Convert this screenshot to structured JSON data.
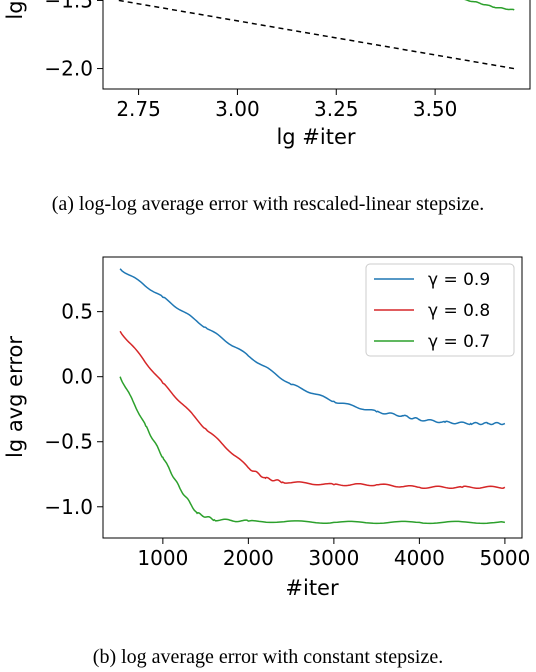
{
  "captions": {
    "a": "(a) log-log average error with rescaled-linear stepsize.",
    "b": "(b) log average error with constant stepsize."
  },
  "chart_data": [
    {
      "type": "line",
      "title": "",
      "xlabel": "lg #iter",
      "ylabel": "lg",
      "xlim": [
        2.66,
        3.74
      ],
      "ylim": [
        -2.15,
        -1.35
      ],
      "xticks": [
        "2.75",
        "3.00",
        "3.25",
        "3.50"
      ],
      "xtick_values": [
        2.75,
        3.0,
        3.25,
        3.5
      ],
      "yticks": [
        "−2.0",
        "−1.5"
      ],
      "ytick_values": [
        -2.0,
        -1.5
      ],
      "series": [
        {
          "style": "dashed",
          "color": "#000000",
          "x": [
            2.7,
            3.7
          ],
          "y": [
            -1.5,
            -2.0
          ]
        },
        {
          "color": "#2ca02c",
          "x": [
            3.4,
            3.45,
            3.5,
            3.55,
            3.6,
            3.65,
            3.7
          ],
          "y": [
            -1.39,
            -1.42,
            -1.45,
            -1.48,
            -1.51,
            -1.55,
            -1.57
          ]
        }
      ]
    },
    {
      "type": "line",
      "title": "",
      "xlabel": "#iter",
      "ylabel": "lg avg error",
      "xlim": [
        300,
        5200
      ],
      "ylim": [
        -1.24,
        0.92
      ],
      "xticks": [
        "1000",
        "2000",
        "3000",
        "4000",
        "5000"
      ],
      "xtick_values": [
        1000,
        2000,
        3000,
        4000,
        5000
      ],
      "yticks": [
        "−1.0",
        "−0.5",
        "0.0",
        "0.5"
      ],
      "ytick_values": [
        -1.0,
        -0.5,
        0.0,
        0.5
      ],
      "legend_position": "top-right",
      "series": [
        {
          "name": "γ = 0.9",
          "color": "#1f77b4",
          "x": [
            500,
            1000,
            1500,
            2000,
            2500,
            3000,
            3500,
            3800,
            4000,
            4300,
            4600,
            4800,
            5000
          ],
          "y": [
            0.83,
            0.61,
            0.38,
            0.16,
            -0.06,
            -0.19,
            -0.27,
            -0.3,
            -0.33,
            -0.35,
            -0.36,
            -0.36,
            -0.36
          ]
        },
        {
          "name": "γ = 0.8",
          "color": "#d62728",
          "x": [
            500,
            1000,
            1500,
            2000,
            2200,
            2400,
            3000,
            3500,
            4000,
            4500,
            5000
          ],
          "y": [
            0.35,
            -0.05,
            -0.4,
            -0.7,
            -0.78,
            -0.81,
            -0.83,
            -0.83,
            -0.85,
            -0.85,
            -0.85
          ]
        },
        {
          "name": "γ = 0.7",
          "color": "#2ca02c",
          "x": [
            500,
            800,
            1000,
            1200,
            1400,
            1600,
            2000,
            3000,
            4000,
            5000
          ],
          "y": [
            0.0,
            -0.38,
            -0.62,
            -0.86,
            -1.05,
            -1.1,
            -1.11,
            -1.12,
            -1.12,
            -1.12
          ]
        }
      ]
    }
  ]
}
